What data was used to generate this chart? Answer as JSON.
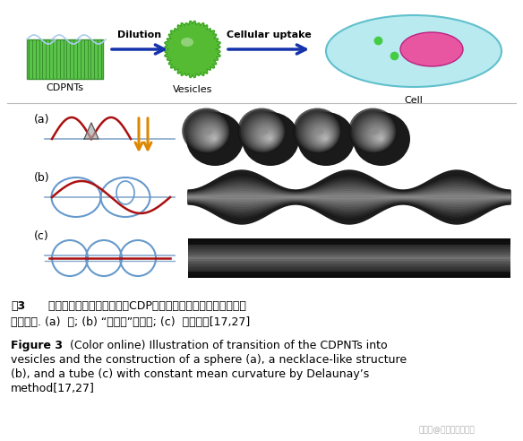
{
  "bg_color": "#ffffff",
  "top_section": {
    "cdpnts_label": "CDPNTs",
    "vesicles_label": "Vesicles",
    "cell_label": "Cell",
    "dilution_label": "Dilution",
    "cellular_uptake_label": "Cellular uptake",
    "arrow_color": "#1533aa"
  },
  "panel_labels": [
    "(a)",
    "(b)",
    "(c)"
  ],
  "chinese_caption_line1": "图3   （网络版彩色）阳离子二肽CDP的纳米管和囊泡结构的转变及其",
  "chinese_caption_line2": "理论模拟. (a)  球; (b) “珍珠链”状结构; (c)  管状结构[17,27]",
  "english_caption_bold": "Figure 3",
  "english_caption_line1": "   (Color online) Illustration of transition of the CDPNTs into",
  "english_caption_line2": "vesicles and the construction of a sphere (a), a necklace-like structure",
  "english_caption_line3": "(b), and a tube (c) with constant mean curvature by Delaunay’s",
  "english_caption_line4": "method[17,27]",
  "watermark": "搜狐号@多楔研究员一没"
}
